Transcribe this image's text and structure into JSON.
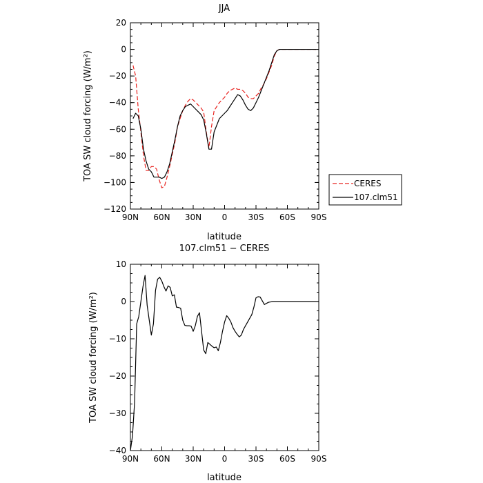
{
  "chart_data": [
    {
      "type": "line",
      "title": "JJA",
      "xlabel": "latitude",
      "ylabel": "TOA SW cloud forcing (W/m²)",
      "xlim": [
        90,
        -90
      ],
      "ylim": [
        -120,
        20
      ],
      "xticks": [
        90,
        60,
        30,
        0,
        -30,
        -60,
        -90
      ],
      "xtick_labels": [
        "90N",
        "60N",
        "30N",
        "0",
        "30S",
        "60S",
        "90S"
      ],
      "yticks": [
        20,
        0,
        -20,
        -40,
        -60,
        -80,
        -100,
        -120
      ],
      "ytick_labels": [
        "20",
        "0",
        "−20",
        "−40",
        "−60",
        "−80",
        "−100",
        "−120"
      ],
      "legend": "right",
      "series": [
        {
          "name": "CERES",
          "color": "#e8231f",
          "dash": "dashed",
          "x": [
            87.5,
            85,
            82.5,
            80,
            77.5,
            75,
            72.5,
            70,
            67.5,
            65,
            62.5,
            60,
            57.5,
            55,
            52.5,
            50,
            47.5,
            45,
            42.5,
            40,
            37.5,
            35,
            32.5,
            30,
            27.5,
            25,
            22.5,
            20,
            17.5,
            15,
            12.5,
            10,
            7.5,
            5,
            2.5,
            0,
            -2.5,
            -5,
            -7.5,
            -10,
            -12.5,
            -15,
            -17.5,
            -20,
            -22.5,
            -25,
            -27.5,
            -30,
            -32.5,
            -35,
            -37.5,
            -40,
            -42.5,
            -45,
            -47.5,
            -50,
            -52.5,
            -55,
            -57.5,
            -60,
            -62.5,
            -65,
            -67.5,
            -70,
            -72.5,
            -75,
            -77.5,
            -80,
            -82.5,
            -85,
            -87.5
          ],
          "y": [
            -12,
            -20,
            -45,
            -62,
            -80,
            -91,
            -91,
            -88,
            -88,
            -90,
            -98,
            -104,
            -103,
            -96,
            -88,
            -79,
            -70,
            -58,
            -52,
            -46,
            -42,
            -39,
            -37,
            -38,
            -40,
            -42,
            -44,
            -47,
            -62,
            -74,
            -58,
            -46,
            -43,
            -40,
            -38,
            -36,
            -33,
            -31,
            -30,
            -29,
            -30,
            -30,
            -31,
            -33,
            -36,
            -37,
            -37,
            -35,
            -33,
            -29,
            -26,
            -22,
            -17,
            -12,
            -5,
            -1,
            0,
            0,
            0,
            0,
            0,
            0,
            0,
            0,
            0,
            0,
            0,
            0,
            0,
            0,
            0
          ]
        },
        {
          "name": "107.clm51",
          "color": "#000000",
          "dash": "solid",
          "x": [
            87.5,
            85,
            82.5,
            80,
            77.5,
            75,
            72.5,
            70,
            67.5,
            65,
            62.5,
            60,
            57.5,
            55,
            52.5,
            50,
            47.5,
            45,
            42.5,
            40,
            37.5,
            35,
            32.5,
            30,
            27.5,
            25,
            22.5,
            20,
            17.5,
            15,
            12.5,
            10,
            7.5,
            5,
            2.5,
            0,
            -2.5,
            -5,
            -7.5,
            -10,
            -12.5,
            -15,
            -17.5,
            -20,
            -22.5,
            -25,
            -27.5,
            -30,
            -32.5,
            -35,
            -37.5,
            -40,
            -42.5,
            -45,
            -47.5,
            -50,
            -52.5,
            -55,
            -57.5,
            -60,
            -62.5,
            -65,
            -67.5,
            -70,
            -72.5,
            -75,
            -77.5,
            -80,
            -82.5,
            -85,
            -87.5
          ],
          "y": [
            -52,
            -48,
            -50,
            -60,
            -75,
            -84,
            -90,
            -92,
            -96,
            -96,
            -96,
            -97,
            -96,
            -92,
            -86,
            -77,
            -68,
            -58,
            -50,
            -46,
            -43,
            -42,
            -41,
            -43,
            -45,
            -47,
            -49,
            -53,
            -63,
            -75,
            -75,
            -62,
            -57,
            -52,
            -50,
            -48,
            -46,
            -43,
            -40,
            -37,
            -34,
            -35,
            -38,
            -42,
            -45,
            -46,
            -44,
            -40,
            -36,
            -31,
            -26,
            -21,
            -16,
            -10,
            -4,
            -1,
            0,
            0,
            0,
            0,
            0,
            0,
            0,
            0,
            0,
            0,
            0,
            0,
            0,
            0,
            0
          ]
        }
      ]
    },
    {
      "type": "line",
      "title": "107.clm51 − CERES",
      "xlabel": "latitude",
      "ylabel": "TOA SW cloud forcing (W/m²)",
      "xlim": [
        90,
        -90
      ],
      "ylim": [
        -40,
        10
      ],
      "xticks": [
        90,
        60,
        30,
        0,
        -30,
        -60,
        -90
      ],
      "xtick_labels": [
        "90N",
        "60N",
        "30N",
        "0",
        "30S",
        "60S",
        "90S"
      ],
      "yticks": [
        10,
        0,
        -10,
        -20,
        -30,
        -40
      ],
      "ytick_labels": [
        "10",
        "0",
        "−10",
        "−20",
        "−30",
        "−40"
      ],
      "series": [
        {
          "color": "#000000",
          "dash": "solid",
          "x": [
            90,
            88,
            86,
            84,
            82,
            80,
            78,
            76,
            74,
            72,
            70,
            68,
            66,
            64,
            62,
            60,
            58,
            56,
            54,
            52,
            50,
            48,
            46,
            44,
            42,
            40,
            38,
            36,
            34,
            32,
            30,
            28,
            26,
            24,
            22,
            20,
            18,
            16,
            14,
            12,
            10,
            8,
            6,
            4,
            2,
            0,
            -2,
            -4,
            -6,
            -8,
            -10,
            -12,
            -14,
            -16,
            -18,
            -20,
            -22,
            -24,
            -26,
            -28,
            -30,
            -32,
            -34,
            -36,
            -38,
            -40,
            -42,
            -44,
            -46,
            -48,
            -50,
            -52,
            -54,
            -56,
            -58,
            -60,
            -62,
            -64,
            -66,
            -68,
            -70,
            -72,
            -74,
            -76,
            -78,
            -80,
            -82,
            -84,
            -86,
            -88,
            -90
          ],
          "y": [
            -40,
            -36,
            -27,
            -6,
            -4,
            0,
            4,
            7,
            -1,
            -5,
            -9,
            -6,
            3,
            6,
            6.5,
            5.5,
            4,
            2.8,
            4.2,
            3.8,
            1.5,
            1.8,
            -1.5,
            -1.6,
            -1.8,
            -5,
            -6.4,
            -6.5,
            -6.5,
            -6.6,
            -8,
            -6.5,
            -4,
            -3,
            -8,
            -13,
            -14,
            -11,
            -11.5,
            -12,
            -12.4,
            -12.2,
            -13.2,
            -11,
            -8,
            -5.5,
            -3.8,
            -4.5,
            -5.5,
            -7,
            -8,
            -8.8,
            -9.5,
            -9,
            -7.5,
            -6.5,
            -5.5,
            -4.5,
            -3.5,
            -1.5,
            1,
            1.3,
            1.2,
            0.2,
            -0.8,
            -0.5,
            -0.2,
            -0.1,
            0,
            0,
            0,
            0,
            0,
            0,
            0,
            0,
            0,
            0,
            0,
            0,
            0,
            0,
            0,
            0,
            0,
            0,
            0,
            0,
            0,
            0,
            0
          ]
        }
      ]
    }
  ]
}
